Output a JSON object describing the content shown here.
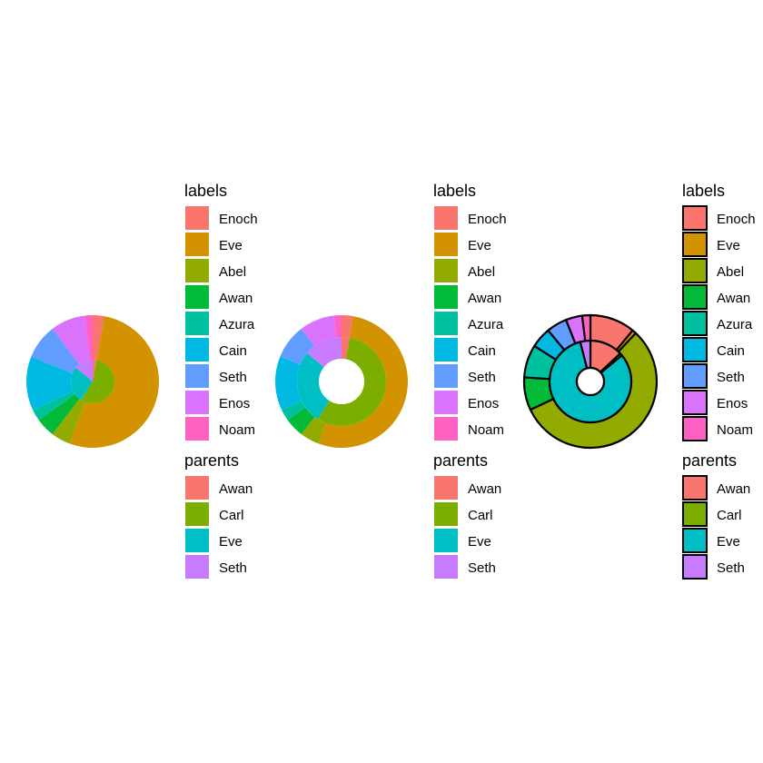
{
  "chart_data": [
    {
      "type": "sunburst",
      "variant": "pie",
      "outer_ring": {
        "legend_title": "labels",
        "segments": [
          {
            "label": "Enoch",
            "value": 0.03
          },
          {
            "label": "Eve",
            "value": 0.56
          },
          {
            "label": "Abel",
            "value": 0.05
          },
          {
            "label": "Awan",
            "value": 0.05
          },
          {
            "label": "Azura",
            "value": 0.03
          },
          {
            "label": "Cain",
            "value": 0.14
          },
          {
            "label": "Seth",
            "value": 0.09
          },
          {
            "label": "Enos",
            "value": 0.09
          },
          {
            "label": "Noam",
            "value": 0.02
          }
        ]
      },
      "inner_ring": {
        "legend_title": "parents",
        "segments": [
          {
            "label": "Awan",
            "value": 0.03
          },
          {
            "label": "Carl",
            "value": 0.56
          },
          {
            "label": "Eve",
            "value": 0.27
          },
          {
            "label": "Seth",
            "value": 0.14
          }
        ]
      },
      "borders": false
    },
    {
      "type": "sunburst",
      "variant": "donut",
      "outer_ring": {
        "legend_title": "labels",
        "segments": [
          {
            "label": "Enoch",
            "value": 0.03
          },
          {
            "label": "Eve",
            "value": 0.56
          },
          {
            "label": "Abel",
            "value": 0.05
          },
          {
            "label": "Awan",
            "value": 0.05
          },
          {
            "label": "Azura",
            "value": 0.03
          },
          {
            "label": "Cain",
            "value": 0.14
          },
          {
            "label": "Seth",
            "value": 0.09
          },
          {
            "label": "Enos",
            "value": 0.09
          },
          {
            "label": "Noam",
            "value": 0.02
          }
        ]
      },
      "inner_ring": {
        "legend_title": "parents",
        "segments": [
          {
            "label": "Awan",
            "value": 0.03
          },
          {
            "label": "Carl",
            "value": 0.56
          },
          {
            "label": "Eve",
            "value": 0.27
          },
          {
            "label": "Seth",
            "value": 0.14
          }
        ]
      },
      "borders": false
    },
    {
      "type": "sunburst",
      "variant": "donut-bordered",
      "outer_ring": {
        "legend_title": "labels",
        "segments": [
          {
            "label": "Enoch",
            "value": 0.11
          },
          {
            "label": "Eve",
            "value": 0.01
          },
          {
            "label": "Abel",
            "value": 0.56
          },
          {
            "label": "Awan",
            "value": 0.08
          },
          {
            "label": "Azura",
            "value": 0.08
          },
          {
            "label": "Cain",
            "value": 0.05
          },
          {
            "label": "Seth",
            "value": 0.05
          },
          {
            "label": "Enos",
            "value": 0.04
          },
          {
            "label": "Noam",
            "value": 0.02
          }
        ]
      },
      "inner_ring": {
        "legend_title": "parents",
        "segments": [
          {
            "label": "Awan",
            "value": 0.13
          },
          {
            "label": "Carl",
            "value": 0.01
          },
          {
            "label": "Eve",
            "value": 0.82
          },
          {
            "label": "Seth",
            "value": 0.04
          }
        ]
      },
      "borders": true
    }
  ],
  "colors": {
    "labels": {
      "Enoch": "#F8766D",
      "Eve": "#D39200",
      "Abel": "#93AA00",
      "Awan": "#00BA38",
      "Azura": "#00C19F",
      "Cain": "#00B9E3",
      "Seth": "#619CFF",
      "Enos": "#DB72FB",
      "Noam": "#FF61C3"
    },
    "parents": {
      "Awan": "#F8766D",
      "Carl": "#7CAE00",
      "Eve": "#00BFC4",
      "Seth": "#C77CFF"
    }
  }
}
